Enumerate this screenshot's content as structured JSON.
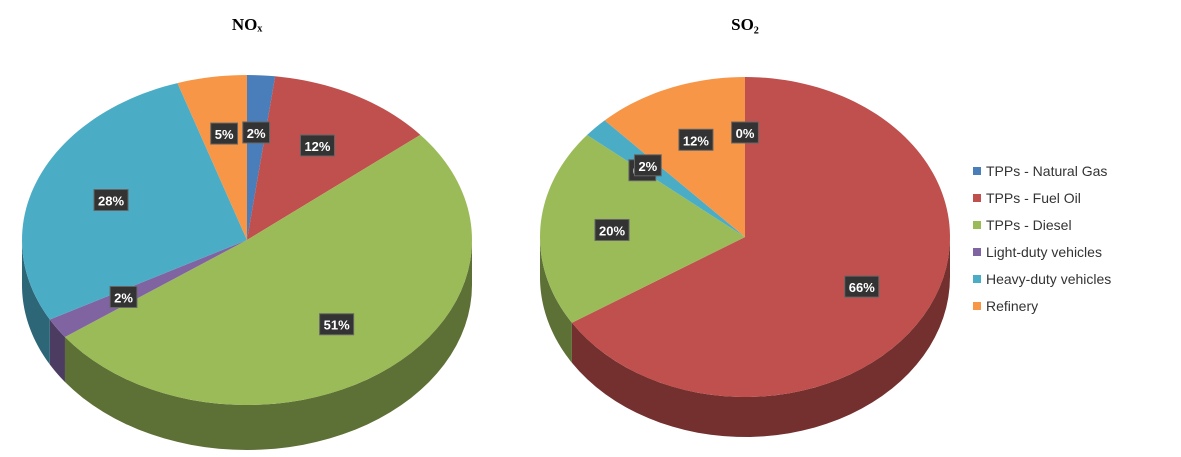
{
  "chart_data": [
    {
      "type": "pie",
      "title": "NOₓ",
      "categories": [
        "TPPs - Natural Gas",
        "TPPs - Fuel Oil",
        "TPPs - Diesel",
        "Light-duty vehicles",
        "Heavy-duty vehicles",
        "Refinery"
      ],
      "values": [
        2,
        12,
        51,
        2,
        28,
        5
      ],
      "value_labels": [
        "2%",
        "12%",
        "51%",
        "2%",
        "28%",
        "5%"
      ],
      "colors": [
        "#4a7ebb",
        "#c0504d",
        "#9bbb59",
        "#8064a2",
        "#4bacc6",
        "#f79646"
      ]
    },
    {
      "type": "pie",
      "title": "SO₂",
      "categories": [
        "TPPs - Natural Gas",
        "TPPs - Fuel Oil",
        "TPPs - Diesel",
        "Light-duty vehicles",
        "Heavy-duty vehicles",
        "Refinery"
      ],
      "values": [
        0,
        66,
        20,
        0,
        2,
        12
      ],
      "value_labels": [
        "0%",
        "66%",
        "20%",
        "0%",
        "2%",
        "12%"
      ],
      "colors": [
        "#4a7ebb",
        "#c0504d",
        "#9bbb59",
        "#8064a2",
        "#4bacc6",
        "#f79646"
      ]
    }
  ]
}
